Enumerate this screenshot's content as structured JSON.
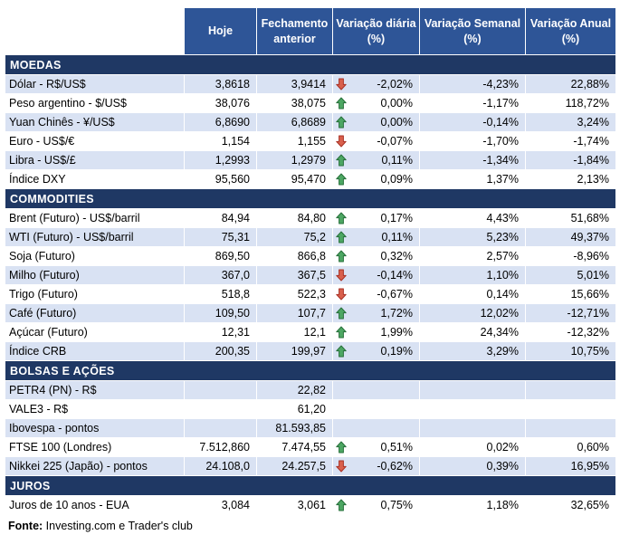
{
  "colors": {
    "header_bg": "#2E5597",
    "section_bg": "#1F3864",
    "row_alt_bg": "#D9E2F3",
    "up_arrow_fill": "#4DA763",
    "up_arrow_stroke": "#27703B",
    "down_arrow_fill": "#D9604C",
    "down_arrow_stroke": "#A93226"
  },
  "chart_data": {
    "type": "table",
    "columns": [
      "",
      "Hoje",
      "Fechamento anterior",
      "Variação diária (%)",
      "Variação Semanal (%)",
      "Variação Anual (%)"
    ],
    "sections": [
      {
        "title": "MOEDAS",
        "rows": [
          {
            "label": "Dólar - R$/US$",
            "hoje": "3,8618",
            "fechamento_anterior": "3,9414",
            "arrow": "down",
            "variacao_diaria": "-2,02%",
            "variacao_semanal": "-4,23%",
            "variacao_anual": "22,88%",
            "shaded": true
          },
          {
            "label": "Peso argentino - $/US$",
            "hoje": "38,076",
            "fechamento_anterior": "38,075",
            "arrow": "up",
            "variacao_diaria": "0,00%",
            "variacao_semanal": "-1,17%",
            "variacao_anual": "118,72%",
            "shaded": false
          },
          {
            "label": "Yuan Chinês - ¥/US$",
            "hoje": "6,8690",
            "fechamento_anterior": "6,8689",
            "arrow": "up",
            "variacao_diaria": "0,00%",
            "variacao_semanal": "-0,14%",
            "variacao_anual": "3,24%",
            "shaded": true
          },
          {
            "label": "Euro - US$/€",
            "hoje": "1,154",
            "fechamento_anterior": "1,155",
            "arrow": "down",
            "variacao_diaria": "-0,07%",
            "variacao_semanal": "-1,70%",
            "variacao_anual": "-1,74%",
            "shaded": false
          },
          {
            "label": "Libra - US$/£",
            "hoje": "1,2993",
            "fechamento_anterior": "1,2979",
            "arrow": "up",
            "variacao_diaria": "0,11%",
            "variacao_semanal": "-1,34%",
            "variacao_anual": "-1,84%",
            "shaded": true
          },
          {
            "label": "Índice DXY",
            "hoje": "95,560",
            "fechamento_anterior": "95,470",
            "arrow": "up",
            "variacao_diaria": "0,09%",
            "variacao_semanal": "1,37%",
            "variacao_anual": "2,13%",
            "shaded": false
          }
        ]
      },
      {
        "title": "COMMODITIES",
        "rows": [
          {
            "label": "Brent (Futuro) - US$/barril",
            "hoje": "84,94",
            "fechamento_anterior": "84,80",
            "arrow": "up",
            "variacao_diaria": "0,17%",
            "variacao_semanal": "4,43%",
            "variacao_anual": "51,68%",
            "shaded": false
          },
          {
            "label": "WTI (Futuro) - US$/barril",
            "hoje": "75,31",
            "fechamento_anterior": "75,2",
            "arrow": "up",
            "variacao_diaria": "0,11%",
            "variacao_semanal": "5,23%",
            "variacao_anual": "49,37%",
            "shaded": true
          },
          {
            "label": "Soja (Futuro)",
            "hoje": "869,50",
            "fechamento_anterior": "866,8",
            "arrow": "up",
            "variacao_diaria": "0,32%",
            "variacao_semanal": "2,57%",
            "variacao_anual": "-8,96%",
            "shaded": false
          },
          {
            "label": "Milho (Futuro)",
            "hoje": "367,0",
            "fechamento_anterior": "367,5",
            "arrow": "down",
            "variacao_diaria": "-0,14%",
            "variacao_semanal": "1,10%",
            "variacao_anual": "5,01%",
            "shaded": true
          },
          {
            "label": "Trigo (Futuro)",
            "hoje": "518,8",
            "fechamento_anterior": "522,3",
            "arrow": "down",
            "variacao_diaria": "-0,67%",
            "variacao_semanal": "0,14%",
            "variacao_anual": "15,66%",
            "shaded": false
          },
          {
            "label": "Café (Futuro)",
            "hoje": "109,50",
            "fechamento_anterior": "107,7",
            "arrow": "up",
            "variacao_diaria": "1,72%",
            "variacao_semanal": "12,02%",
            "variacao_anual": "-12,71%",
            "shaded": true
          },
          {
            "label": "Açúcar (Futuro)",
            "hoje": "12,31",
            "fechamento_anterior": "12,1",
            "arrow": "up",
            "variacao_diaria": "1,99%",
            "variacao_semanal": "24,34%",
            "variacao_anual": "-12,32%",
            "shaded": false
          },
          {
            "label": "Índice CRB",
            "hoje": "200,35",
            "fechamento_anterior": "199,97",
            "arrow": "up",
            "variacao_diaria": "0,19%",
            "variacao_semanal": "3,29%",
            "variacao_anual": "10,75%",
            "shaded": true
          }
        ]
      },
      {
        "title": "BOLSAS E AÇÕES",
        "rows": [
          {
            "label": "PETR4 (PN) - R$",
            "hoje": "",
            "fechamento_anterior": "22,82",
            "arrow": "",
            "variacao_diaria": "",
            "variacao_semanal": "",
            "variacao_anual": "",
            "shaded": true
          },
          {
            "label": "VALE3 - R$",
            "hoje": "",
            "fechamento_anterior": "61,20",
            "arrow": "",
            "variacao_diaria": "",
            "variacao_semanal": "",
            "variacao_anual": "",
            "shaded": false
          },
          {
            "label": "Ibovespa - pontos",
            "hoje": "",
            "fechamento_anterior": "81.593,85",
            "arrow": "",
            "variacao_diaria": "",
            "variacao_semanal": "",
            "variacao_anual": "",
            "shaded": true
          },
          {
            "label": "FTSE 100 (Londres)",
            "hoje": "7.512,860",
            "fechamento_anterior": "7.474,55",
            "arrow": "up",
            "variacao_diaria": "0,51%",
            "variacao_semanal": "0,02%",
            "variacao_anual": "0,60%",
            "shaded": false
          },
          {
            "label": "Nikkei 225 (Japão) - pontos",
            "hoje": "24.108,0",
            "fechamento_anterior": "24.257,5",
            "arrow": "down",
            "variacao_diaria": "-0,62%",
            "variacao_semanal": "0,39%",
            "variacao_anual": "16,95%",
            "shaded": true
          }
        ]
      },
      {
        "title": "JUROS",
        "rows": [
          {
            "label": "Juros de 10 anos - EUA",
            "hoje": "3,084",
            "fechamento_anterior": "3,061",
            "arrow": "up",
            "variacao_diaria": "0,75%",
            "variacao_semanal": "1,18%",
            "variacao_anual": "32,65%",
            "shaded": false
          }
        ]
      }
    ]
  },
  "footer": {
    "label": "Fonte:",
    "text": " Investing.com e Trader's club"
  }
}
